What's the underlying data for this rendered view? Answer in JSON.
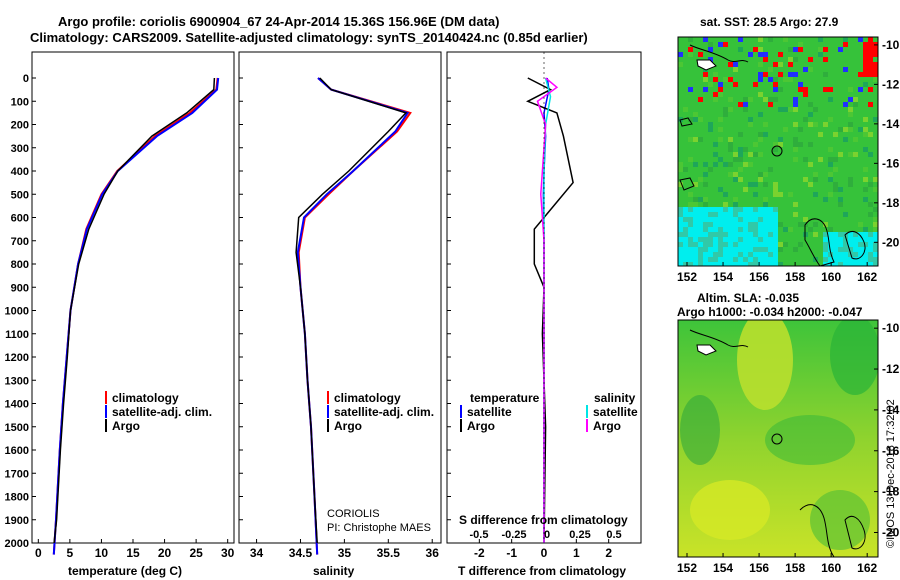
{
  "title": {
    "line1": "Argo profile: coriolis 6900904_67 24-Apr-2014 15.36S 156.96E (DM data)",
    "line2": "Climatology: CARS2009. Satellite-adjusted climatology: synTS_20140424.nc (0.85d earlier)"
  },
  "panels": {
    "temperature": {
      "xlabel": "temperature (deg C)",
      "xticks": [
        "0",
        "5",
        "10",
        "15",
        "20",
        "25",
        "30"
      ],
      "legend": [
        "climatology",
        "satellite-adj. clim.",
        "Argo"
      ]
    },
    "salinity": {
      "xlabel": "salinity",
      "xticks": [
        "34",
        "34.5",
        "35",
        "35.5",
        "36"
      ],
      "legend": [
        "climatology",
        "satellite-adj. clim.",
        "Argo"
      ],
      "credit1": "CORIOLIS",
      "credit2": "PI: Christophe MAES"
    },
    "difference": {
      "xlabel": "T difference from climatology",
      "xticks": [
        "-2",
        "-1",
        "0",
        "1",
        "2"
      ],
      "s_label": "S difference from climatology",
      "s_ticks": [
        "-0.5",
        "-0.25",
        "0",
        "0.25",
        "0.5"
      ],
      "legend_t_title": "temperature",
      "legend_s_title": "salinity",
      "legend_t": [
        "satellite",
        "Argo"
      ],
      "legend_s": [
        "satellite",
        "Argo"
      ]
    }
  },
  "depth_ticks": [
    "0",
    "100",
    "200",
    "300",
    "400",
    "500",
    "600",
    "700",
    "800",
    "900",
    "1000",
    "1100",
    "1200",
    "1300",
    "1400",
    "1500",
    "1600",
    "1700",
    "1800",
    "1900",
    "2000"
  ],
  "maps": {
    "sst": {
      "title": "sat. SST: 28.5 Argo: 27.9",
      "yticks": [
        "-10",
        "-12",
        "-14",
        "-16",
        "-18",
        "-20"
      ],
      "xticks": [
        "152",
        "154",
        "156",
        "158",
        "160",
        "162"
      ]
    },
    "sla": {
      "title1": "Altim. SLA: -0.035",
      "title2": "Argo h1000: -0.034 h2000: -0.047",
      "yticks": [
        "-10",
        "-12",
        "-14",
        "-16",
        "-18",
        "-20"
      ],
      "xticks": [
        "152",
        "154",
        "156",
        "158",
        "160",
        "162"
      ]
    }
  },
  "footer": "©IMOS 13-Dec-2018 17:32:02",
  "colors": {
    "climatology": "#ff0000",
    "satellite": "#0000ff",
    "argo": "#000000",
    "s_satellite": "#00e5e5",
    "s_argo": "#ff00ff"
  },
  "chart_data": [
    {
      "type": "line",
      "xlabel": "temperature (deg C)",
      "ylabel": "depth",
      "xlim": [
        -1,
        31
      ],
      "ylim": [
        2080,
        0
      ],
      "series": [
        {
          "name": "climatology",
          "x": [
            28.4,
            28.2,
            24.0,
            18.5,
            12.5,
            10.0,
            7.6,
            6.3,
            5.1,
            4.5,
            3.9,
            3.4,
            2.8,
            2.45
          ],
          "depth": [
            0,
            50,
            150,
            250,
            400,
            500,
            650,
            800,
            1000,
            1200,
            1400,
            1600,
            1900,
            2050
          ]
        },
        {
          "name": "satellite-adj. clim.",
          "x": [
            28.5,
            28.3,
            24.4,
            18.8,
            12.6,
            10.1,
            7.7,
            6.3,
            5.1,
            4.5,
            3.9,
            3.4,
            2.8,
            2.45
          ],
          "depth": [
            0,
            50,
            150,
            250,
            400,
            500,
            650,
            800,
            1000,
            1200,
            1400,
            1600,
            1900,
            2050
          ]
        },
        {
          "name": "Argo",
          "x": [
            27.9,
            27.8,
            23.5,
            18.0,
            12.6,
            10.4,
            8.0,
            6.4,
            5.1,
            4.6,
            4.0,
            3.5,
            2.9,
            2.5
          ],
          "depth": [
            0,
            50,
            150,
            250,
            400,
            500,
            650,
            800,
            1000,
            1200,
            1400,
            1600,
            1900,
            2000
          ]
        }
      ]
    },
    {
      "type": "line",
      "xlabel": "salinity",
      "ylabel": "depth",
      "xlim": [
        33.8,
        36.1
      ],
      "ylim": [
        2080,
        0
      ],
      "series": [
        {
          "name": "climatology",
          "x": [
            34.7,
            34.85,
            35.75,
            35.6,
            35.1,
            34.82,
            34.55,
            34.48,
            34.5,
            34.55,
            34.58,
            34.62,
            34.66,
            34.69
          ],
          "depth": [
            0,
            50,
            150,
            230,
            400,
            500,
            600,
            750,
            900,
            1100,
            1300,
            1500,
            1800,
            2050
          ]
        },
        {
          "name": "satellite-adj. clim.",
          "x": [
            34.7,
            34.85,
            35.72,
            35.58,
            35.1,
            34.8,
            34.54,
            34.47,
            34.5,
            34.55,
            34.58,
            34.62,
            34.66,
            34.69
          ],
          "depth": [
            0,
            50,
            150,
            230,
            400,
            500,
            600,
            750,
            900,
            1100,
            1300,
            1500,
            1800,
            2050
          ]
        },
        {
          "name": "Argo",
          "x": [
            34.72,
            34.85,
            35.7,
            35.5,
            35.05,
            34.75,
            34.48,
            34.45,
            34.5,
            34.55,
            34.58,
            34.62,
            34.66,
            34.69
          ],
          "depth": [
            0,
            50,
            150,
            230,
            400,
            500,
            600,
            750,
            900,
            1100,
            1300,
            1500,
            1800,
            2000
          ]
        }
      ]
    },
    {
      "type": "line",
      "xlabel": "T difference from climatology",
      "ylabel": "depth",
      "xlim": [
        -3,
        3
      ],
      "ylim": [
        2080,
        0
      ],
      "series": [
        {
          "name": "temperature satellite",
          "x": [
            0.1,
            0.15,
            0.0,
            0.05,
            0.0,
            -0.02,
            0.0,
            0.0,
            0.0,
            0.0
          ],
          "depth": [
            0,
            50,
            150,
            250,
            400,
            500,
            700,
            1000,
            1500,
            2000
          ]
        },
        {
          "name": "temperature Argo",
          "x": [
            -0.5,
            0.2,
            -0.5,
            0.4,
            0.6,
            0.9,
            0.3,
            -0.3,
            -0.3,
            0.0,
            -0.05,
            0.05,
            0.0
          ],
          "depth": [
            0,
            50,
            100,
            150,
            250,
            450,
            550,
            650,
            800,
            900,
            1100,
            1500,
            2000
          ]
        },
        {
          "name": "salinity satellite",
          "x": [
            0.05,
            0.2,
            0.05,
            0.0,
            0.0,
            0.0,
            0.0
          ],
          "depth": [
            0,
            80,
            200,
            400,
            700,
            1200,
            2000
          ]
        },
        {
          "name": "salinity Argo",
          "x": [
            0.05,
            0.4,
            -0.2,
            0.05,
            -0.1,
            0.0,
            0.0,
            0.0
          ],
          "depth": [
            0,
            40,
            100,
            200,
            500,
            700,
            1200,
            2000
          ]
        }
      ]
    }
  ]
}
